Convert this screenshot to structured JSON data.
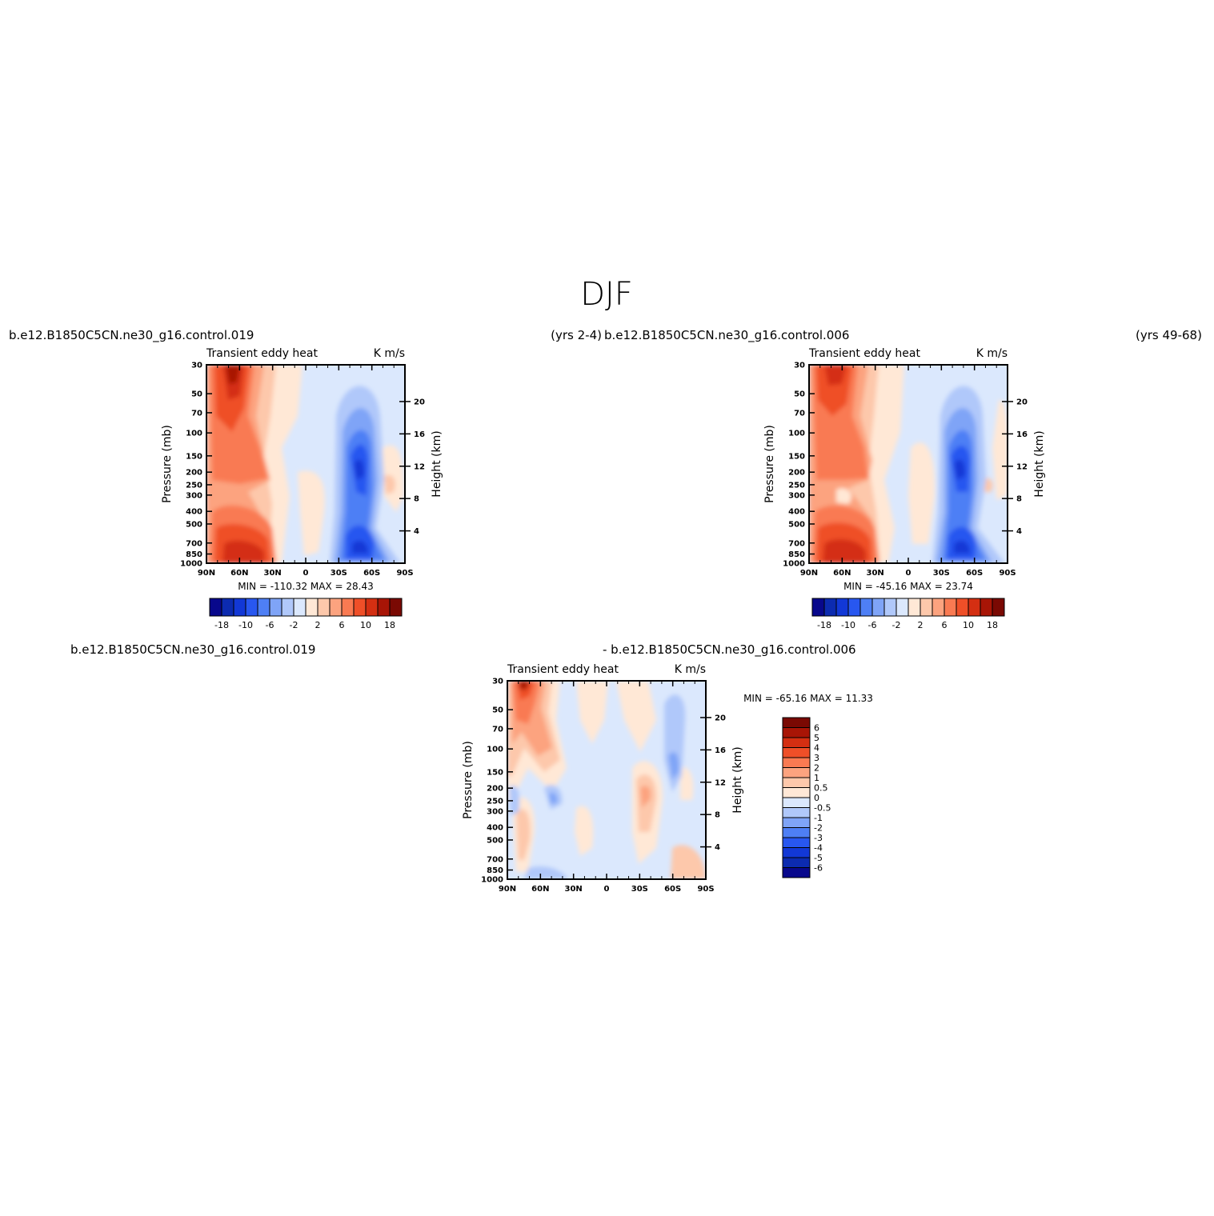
{
  "page_title": "DJF",
  "panel1": {
    "case_left": "b.e12.B1850C5CN.ne30_g16.control.019",
    "case_right": "(yrs  2-4)",
    "left_string": "Transient  eddy  heat",
    "right_string": "K  m/s",
    "minmax": "MIN  =  -110.32    MAX  =    28.43"
  },
  "panel2": {
    "case_left": "b.e12.B1850C5CN.ne30_g16.control.006",
    "case_right": "(yrs  49-68)",
    "left_string": "Transient  eddy  heat",
    "right_string": "K  m/s",
    "minmax": "MIN  =  -45.16    MAX  =    23.74"
  },
  "panel3": {
    "case_left": "b.e12.B1850C5CN.ne30_g16.control.019",
    "case_right": "-  b.e12.B1850C5CN.ne30_g16.control.006",
    "left_string": "Transient  eddy  heat",
    "right_string": "K  m/s",
    "minmax": "MIN  =  -65.16    MAX  =    11.33"
  },
  "axes": {
    "y_label": "Pressure  (mb)",
    "y2_label": "Height  (km)",
    "x_ticks": [
      "90N",
      "60N",
      "30N",
      "0",
      "30S",
      "60S",
      "90S"
    ],
    "y_ticks": [
      "30",
      "50",
      "70",
      "100",
      "150",
      "200",
      "250",
      "300",
      "400",
      "500",
      "700",
      "850",
      "1000"
    ],
    "y2_ticks": [
      "20",
      "16",
      "12",
      "8",
      "4"
    ]
  },
  "colorbar_main": {
    "labels": [
      "-18",
      "-10",
      "-6",
      "-2",
      "2",
      "6",
      "10",
      "18"
    ],
    "levels": [
      -18,
      -14,
      -10,
      -8,
      -6,
      -4,
      -2,
      0,
      2,
      4,
      6,
      8,
      10,
      14,
      18
    ],
    "colors": [
      "#08088c",
      "#0c2bb0",
      "#1238d6",
      "#2857f0",
      "#4e7ff5",
      "#7fa4f7",
      "#b0c8fa",
      "#dbe8fd",
      "#ffe8d6",
      "#fdc8ab",
      "#fca37f",
      "#f97a52",
      "#ef4f28",
      "#d42f12",
      "#a81506",
      "#7a0903"
    ]
  },
  "colorbar_diff": {
    "labels": [
      "6",
      "5",
      "4",
      "3",
      "2",
      "1",
      "0.5",
      "0",
      "-0.5",
      "-1",
      "-2",
      "-3",
      "-4",
      "-5",
      "-6"
    ],
    "colors": [
      "#7a0903",
      "#a81506",
      "#d42f12",
      "#ef4f28",
      "#f97a52",
      "#fca37f",
      "#fdc8ab",
      "#ffe8d6",
      "#dbe8fd",
      "#b0c8fa",
      "#7fa4f7",
      "#4e7ff5",
      "#2857f0",
      "#1238d6",
      "#0c2bb0",
      "#08088c"
    ]
  },
  "chart_data": [
    {
      "type": "heatmap",
      "title": "Transient  eddy  heat",
      "units": "K  m/s",
      "xlabel": "",
      "ylabel": "Pressure  (mb)",
      "y2label": "Height  (km)",
      "x": [
        "90N",
        "60N",
        "30N",
        "0",
        "30S",
        "60S",
        "90S"
      ],
      "y": [
        30,
        50,
        70,
        100,
        150,
        200,
        250,
        300,
        400,
        500,
        700,
        850,
        1000
      ],
      "min": -110.32,
      "max": 28.43
    },
    {
      "type": "heatmap",
      "title": "Transient  eddy  heat",
      "units": "K  m/s",
      "xlabel": "",
      "ylabel": "Pressure  (mb)",
      "y2label": "Height  (km)",
      "x": [
        "90N",
        "60N",
        "30N",
        "0",
        "30S",
        "60S",
        "90S"
      ],
      "y": [
        30,
        50,
        70,
        100,
        150,
        200,
        250,
        300,
        400,
        500,
        700,
        850,
        1000
      ],
      "min": -45.16,
      "max": 23.74
    },
    {
      "type": "heatmap",
      "title": "Transient  eddy  heat",
      "units": "K  m/s",
      "xlabel": "",
      "ylabel": "Pressure  (mb)",
      "y2label": "Height  (km)",
      "x": [
        "90N",
        "60N",
        "30N",
        "0",
        "30S",
        "60S",
        "90S"
      ],
      "y": [
        30,
        50,
        70,
        100,
        150,
        200,
        250,
        300,
        400,
        500,
        700,
        850,
        1000
      ],
      "min": -65.16,
      "max": 11.33
    }
  ]
}
